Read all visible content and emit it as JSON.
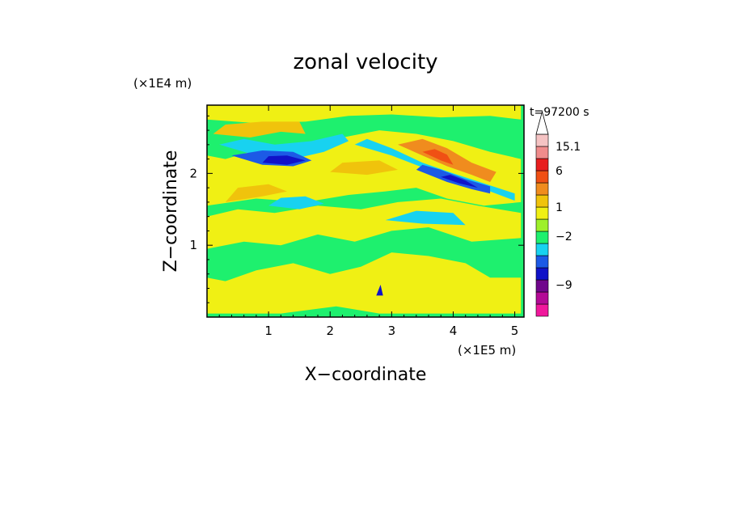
{
  "chart_data": {
    "type": "heatmap",
    "title": "zonal velocity",
    "xlabel": "X−coordinate",
    "ylabel": "Z−coordinate",
    "x_scale_label": "(×1E5 m)",
    "y_scale_label": "(×1E4 m)",
    "time_label": "t=97200 s",
    "xlim": [
      0,
      5.15
    ],
    "ylim": [
      0,
      2.95
    ],
    "x_ticks": [
      {
        "value": 1,
        "label": "1"
      },
      {
        "value": 2,
        "label": "2"
      },
      {
        "value": 3,
        "label": "3"
      },
      {
        "value": 4,
        "label": "4"
      },
      {
        "value": 5,
        "label": "5"
      }
    ],
    "y_ticks": [
      {
        "value": 1,
        "label": "1"
      },
      {
        "value": 2,
        "label": "2"
      }
    ],
    "colorbar": {
      "bins": [
        {
          "color": "#f0189c"
        },
        {
          "color": "#b40a96"
        },
        {
          "color": "#70078c"
        },
        {
          "color": "#1012c8"
        },
        {
          "color": "#1c5ae6"
        },
        {
          "color": "#18d2f0"
        },
        {
          "color": "#1ef06e"
        },
        {
          "color": "#9ef02a"
        },
        {
          "color": "#f0f014"
        },
        {
          "color": "#f0c30c"
        },
        {
          "color": "#f08c1e"
        },
        {
          "color": "#f05014"
        },
        {
          "color": "#e81e1e"
        },
        {
          "color": "#f08c8c"
        },
        {
          "color": "#f5c3c3"
        }
      ],
      "labels": [
        {
          "text": "15.1",
          "bin_edge": 14
        },
        {
          "text": "6",
          "bin_edge": 12
        },
        {
          "text": "1",
          "bin_edge": 9
        },
        {
          "text": "−2",
          "bin_edge": 6.6
        },
        {
          "text": "−9",
          "bin_edge": 2.6
        }
      ],
      "overflow_color": "#ffffff"
    },
    "field": {
      "background": "#1ef06e",
      "regions": [
        {
          "color": "#f0f014",
          "path": [
            [
              0,
              0.05
            ],
            [
              1.2,
              0.05
            ],
            [
              2.1,
              0.15
            ],
            [
              2.8,
              0.05
            ],
            [
              5.1,
              0.05
            ],
            [
              5.1,
              0.55
            ],
            [
              4.6,
              0.55
            ],
            [
              4.2,
              0.75
            ],
            [
              3.6,
              0.85
            ],
            [
              3.0,
              0.9
            ],
            [
              2.5,
              0.7
            ],
            [
              2.0,
              0.6
            ],
            [
              1.4,
              0.75
            ],
            [
              0.8,
              0.65
            ],
            [
              0.3,
              0.5
            ],
            [
              0,
              0.55
            ]
          ]
        },
        {
          "color": "#f0f014",
          "path": [
            [
              0,
              0.95
            ],
            [
              0.6,
              1.05
            ],
            [
              1.2,
              1.0
            ],
            [
              1.8,
              1.15
            ],
            [
              2.4,
              1.05
            ],
            [
              3.0,
              1.2
            ],
            [
              3.6,
              1.25
            ],
            [
              4.3,
              1.05
            ],
            [
              5.1,
              1.1
            ],
            [
              5.1,
              1.45
            ],
            [
              4.4,
              1.55
            ],
            [
              3.8,
              1.65
            ],
            [
              3.1,
              1.6
            ],
            [
              2.5,
              1.5
            ],
            [
              1.8,
              1.55
            ],
            [
              1.1,
              1.45
            ],
            [
              0.5,
              1.5
            ],
            [
              0,
              1.4
            ]
          ]
        },
        {
          "color": "#f0f014",
          "path": [
            [
              0,
              1.55
            ],
            [
              0.8,
              1.65
            ],
            [
              1.6,
              1.6
            ],
            [
              2.3,
              1.7
            ],
            [
              2.9,
              1.75
            ],
            [
              3.4,
              1.8
            ],
            [
              3.9,
              1.65
            ],
            [
              4.5,
              1.55
            ],
            [
              5.1,
              1.6
            ],
            [
              5.1,
              2.2
            ],
            [
              4.6,
              2.3
            ],
            [
              4.0,
              2.45
            ],
            [
              3.4,
              2.55
            ],
            [
              2.8,
              2.6
            ],
            [
              2.2,
              2.5
            ],
            [
              1.5,
              2.3
            ],
            [
              0.9,
              2.35
            ],
            [
              0.3,
              2.2
            ],
            [
              0,
              2.25
            ]
          ]
        },
        {
          "color": "#f0f014",
          "path": [
            [
              0,
              2.75
            ],
            [
              0.8,
              2.7
            ],
            [
              1.6,
              2.72
            ],
            [
              2.3,
              2.8
            ],
            [
              3.0,
              2.82
            ],
            [
              3.8,
              2.78
            ],
            [
              4.6,
              2.8
            ],
            [
              5.1,
              2.75
            ],
            [
              5.1,
              2.95
            ],
            [
              0,
              2.95
            ]
          ]
        },
        {
          "color": "#f0c30c",
          "path": [
            [
              0.1,
              2.55
            ],
            [
              0.7,
              2.5
            ],
            [
              1.2,
              2.58
            ],
            [
              1.6,
              2.55
            ],
            [
              1.5,
              2.72
            ],
            [
              0.9,
              2.72
            ],
            [
              0.3,
              2.68
            ]
          ]
        },
        {
          "color": "#f0c30c",
          "path": [
            [
              0.3,
              1.6
            ],
            [
              0.9,
              1.68
            ],
            [
              1.3,
              1.75
            ],
            [
              1.0,
              1.85
            ],
            [
              0.5,
              1.8
            ]
          ]
        },
        {
          "color": "#f0c30c",
          "path": [
            [
              2.0,
              2.02
            ],
            [
              2.6,
              1.98
            ],
            [
              3.1,
              2.05
            ],
            [
              2.8,
              2.18
            ],
            [
              2.2,
              2.15
            ]
          ]
        },
        {
          "color": "#f08c1e",
          "path": [
            [
              3.1,
              2.4
            ],
            [
              3.5,
              2.25
            ],
            [
              3.9,
              2.1
            ],
            [
              4.3,
              1.98
            ],
            [
              4.6,
              1.88
            ],
            [
              4.7,
              2.02
            ],
            [
              4.3,
              2.15
            ],
            [
              3.9,
              2.35
            ],
            [
              3.5,
              2.48
            ]
          ]
        },
        {
          "color": "#f05014",
          "path": [
            [
              3.5,
              2.3
            ],
            [
              3.8,
              2.18
            ],
            [
              4.0,
              2.12
            ],
            [
              3.9,
              2.26
            ],
            [
              3.7,
              2.34
            ]
          ]
        },
        {
          "color": "#18d2f0",
          "path": [
            [
              0.2,
              2.4
            ],
            [
              0.8,
              2.25
            ],
            [
              1.4,
              2.2
            ],
            [
              1.9,
              2.3
            ],
            [
              2.3,
              2.45
            ],
            [
              2.2,
              2.55
            ],
            [
              1.7,
              2.45
            ],
            [
              1.1,
              2.4
            ],
            [
              0.6,
              2.48
            ]
          ]
        },
        {
          "color": "#18d2f0",
          "path": [
            [
              2.4,
              2.4
            ],
            [
              3.0,
              2.25
            ],
            [
              3.6,
              2.05
            ],
            [
              4.1,
              1.9
            ],
            [
              4.6,
              1.75
            ],
            [
              5.0,
              1.62
            ],
            [
              5.0,
              1.72
            ],
            [
              4.5,
              1.86
            ],
            [
              4.0,
              2.0
            ],
            [
              3.5,
              2.15
            ],
            [
              3.0,
              2.35
            ],
            [
              2.6,
              2.48
            ]
          ]
        },
        {
          "color": "#18d2f0",
          "path": [
            [
              1.0,
              1.55
            ],
            [
              1.5,
              1.5
            ],
            [
              1.9,
              1.58
            ],
            [
              1.6,
              1.68
            ],
            [
              1.2,
              1.66
            ]
          ]
        },
        {
          "color": "#18d2f0",
          "path": [
            [
              2.9,
              1.35
            ],
            [
              3.5,
              1.3
            ],
            [
              4.2,
              1.28
            ],
            [
              4.0,
              1.45
            ],
            [
              3.4,
              1.48
            ]
          ]
        },
        {
          "color": "#1c5ae6",
          "path": [
            [
              0.4,
              2.25
            ],
            [
              0.9,
              2.12
            ],
            [
              1.4,
              2.1
            ],
            [
              1.7,
              2.18
            ],
            [
              1.4,
              2.3
            ],
            [
              0.9,
              2.32
            ]
          ]
        },
        {
          "color": "#1c5ae6",
          "path": [
            [
              3.4,
              2.05
            ],
            [
              3.9,
              1.88
            ],
            [
              4.3,
              1.78
            ],
            [
              4.6,
              1.72
            ],
            [
              4.6,
              1.82
            ],
            [
              4.2,
              1.92
            ],
            [
              3.8,
              2.05
            ],
            [
              3.5,
              2.12
            ]
          ]
        },
        {
          "color": "#1012c8",
          "path": [
            [
              0.9,
              2.15
            ],
            [
              1.3,
              2.12
            ],
            [
              1.6,
              2.18
            ],
            [
              1.3,
              2.25
            ],
            [
              1.0,
              2.24
            ]
          ]
        },
        {
          "color": "#1012c8",
          "path": [
            [
              3.8,
              1.95
            ],
            [
              4.1,
              1.86
            ],
            [
              4.4,
              1.8
            ],
            [
              4.2,
              1.9
            ],
            [
              3.95,
              1.98
            ]
          ]
        },
        {
          "color": "#1012c8",
          "path": [
            [
              2.75,
              0.3
            ],
            [
              2.82,
              0.45
            ],
            [
              2.86,
              0.3
            ]
          ]
        }
      ]
    }
  }
}
